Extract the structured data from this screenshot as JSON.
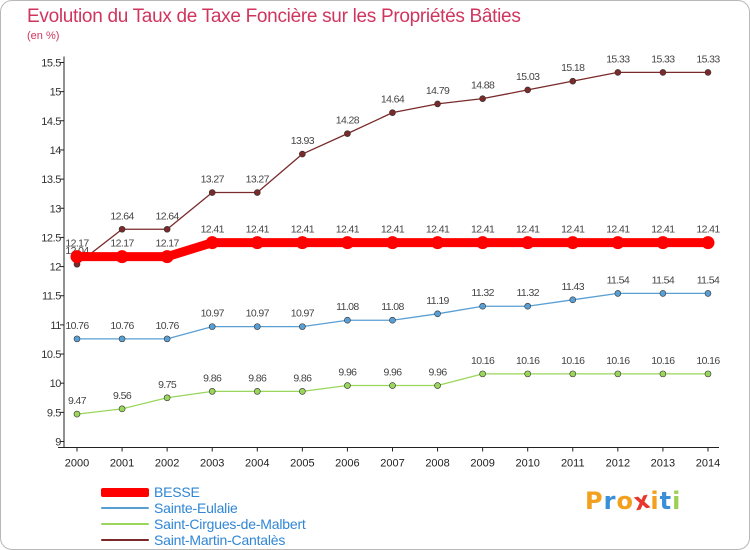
{
  "chart_data": {
    "type": "line",
    "title": "Evolution du Taux de Taxe Foncière sur les Propriétés Bâties",
    "subtitle": "(en %)",
    "x": [
      "2000",
      "2001",
      "2002",
      "2003",
      "2004",
      "2005",
      "2006",
      "2007",
      "2008",
      "2009",
      "2010",
      "2011",
      "2012",
      "2013",
      "2014"
    ],
    "ylim": [
      9,
      15.5
    ],
    "yticks": [
      "9",
      "9.5",
      "10",
      "10.5",
      "11",
      "11.5",
      "12",
      "12.5",
      "13",
      "13.5",
      "14",
      "14.5",
      "15",
      "15.5"
    ],
    "grid": false,
    "series": [
      {
        "name": "BESSE",
        "color": "#ff0000",
        "values": [
          12.17,
          12.17,
          12.17,
          12.41,
          12.41,
          12.41,
          12.41,
          12.41,
          12.41,
          12.41,
          12.41,
          12.41,
          12.41,
          12.41,
          12.41
        ],
        "labels": [
          "12.17",
          "12.17",
          "12.17",
          "12.41",
          "12.41",
          "12.41",
          "12.41",
          "12.41",
          "12.41",
          "12.41",
          "12.41",
          "12.41",
          "12.41",
          "12.41",
          "12.41"
        ]
      },
      {
        "name": "Sainte-Eulalie",
        "color": "#5a9fd4",
        "values": [
          10.76,
          10.76,
          10.76,
          10.97,
          10.97,
          10.97,
          11.08,
          11.08,
          11.19,
          11.32,
          11.32,
          11.43,
          11.54,
          11.54,
          11.54
        ],
        "labels": [
          "10.76",
          "10.76",
          "10.76",
          "10.97",
          "10.97",
          "10.97",
          "11.08",
          "11.08",
          "11.19",
          "11.32",
          "11.32",
          "11.43",
          "11.54",
          "11.54",
          "11.54"
        ]
      },
      {
        "name": "Saint-Cirgues-de-Malbert",
        "color": "#99d65a",
        "values": [
          9.47,
          9.56,
          9.75,
          9.86,
          9.86,
          9.86,
          9.96,
          9.96,
          9.96,
          10.16,
          10.16,
          10.16,
          10.16,
          10.16,
          10.16
        ],
        "labels": [
          "9.47",
          "9.56",
          "9.75",
          "9.86",
          "9.86",
          "9.86",
          "9.96",
          "9.96",
          "9.96",
          "10.16",
          "10.16",
          "10.16",
          "10.16",
          "10.16",
          "10.16"
        ]
      },
      {
        "name": "Saint-Martin-Cantalès",
        "color": "#7a2a2a",
        "values": [
          12.04,
          12.64,
          12.64,
          13.27,
          13.27,
          13.93,
          14.28,
          14.64,
          14.79,
          14.88,
          15.03,
          15.18,
          15.33,
          15.33,
          15.33
        ],
        "labels": [
          "12.04",
          "12.64",
          "12.64",
          "13.27",
          "13.27",
          "13.93",
          "14.28",
          "14.64",
          "14.79",
          "14.88",
          "15.03",
          "15.18",
          "15.33",
          "15.33",
          "15.33"
        ]
      }
    ]
  },
  "brand": {
    "logo_letters": [
      "P",
      "r",
      "o",
      "x",
      "i",
      "t",
      "i"
    ],
    "logo_colors": [
      "#f2a01e",
      "#3a8fd8",
      "#f2a01e",
      "#e8382e",
      "#f2a01e",
      "#3a8fd8",
      "#9bd153"
    ]
  }
}
